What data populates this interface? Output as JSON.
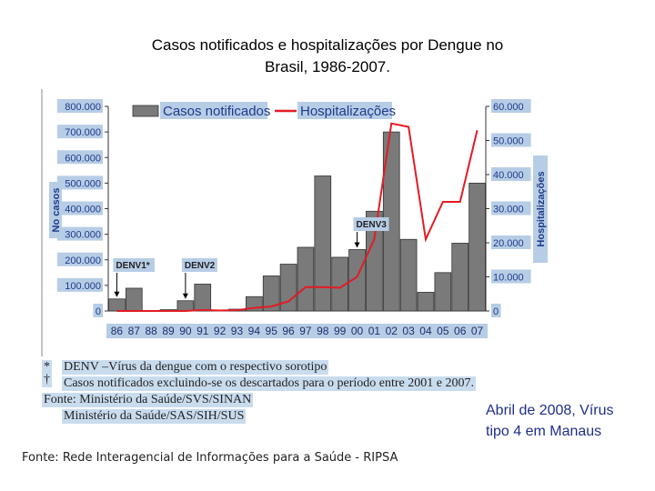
{
  "slide": {
    "title_line1": "Casos notificados e hospitalizações por Dengue no",
    "title_line2": "Brasil, 1986-2007.",
    "note_line1": "Abril de 2008, Vírus",
    "note_line2": "tipo 4  em Manaus",
    "source": "Fonte: Rede Interagencial de Informações para a Saúde - RIPSA"
  },
  "chart_notes": {
    "mark1": "*",
    "mark2": "†",
    "line1": "DENV –Vírus da dengue com o respectivo sorotipo",
    "line2": "Casos notificados excluindo-se os descartados para o período entre 2001 e 2007.",
    "line3": "Fonte: Ministério da Saúde/SVS/SINAN",
    "line4": "Ministério da Saúde/SAS/SIH/SUS"
  },
  "colors": {
    "bar": "#7a7a7a",
    "line": "#e31b23",
    "label_bg": "#b7cde6",
    "label_text": "#1f3a8a",
    "note_bg": "#c9dcee"
  },
  "chart_data": {
    "type": "bar",
    "categories": [
      "86",
      "87",
      "88",
      "89",
      "90",
      "91",
      "92",
      "93",
      "94",
      "95",
      "96",
      "97",
      "98",
      "99",
      "00",
      "01",
      "02",
      "03",
      "04",
      "05",
      "06",
      "07"
    ],
    "series": [
      {
        "name": "Casos notificados",
        "type": "bar",
        "axis": "left",
        "values": [
          47000,
          89000,
          1500,
          5000,
          40000,
          105000,
          1500,
          7000,
          56000,
          137000,
          183000,
          249000,
          528000,
          210000,
          240000,
          390000,
          700000,
          280000,
          73000,
          150000,
          265000,
          500000
        ]
      },
      {
        "name": "Hospitalizações",
        "type": "line",
        "axis": "right",
        "values": [
          0,
          0,
          0,
          0,
          0,
          300,
          150,
          250,
          900,
          1300,
          2800,
          7000,
          7000,
          6800,
          10000,
          21000,
          55000,
          54000,
          21000,
          32000,
          32000,
          53000
        ]
      }
    ],
    "ylabel": "No casos",
    "y2label": "Hospitalizações",
    "ylim": [
      0,
      800000
    ],
    "y2lim": [
      0,
      60000
    ],
    "yticks": [
      "0",
      "100.000",
      "200.000",
      "300.000",
      "400.000",
      "500.000",
      "600.000",
      "700.000",
      "800.000"
    ],
    "y2ticks": [
      "0",
      "10.000",
      "20.000",
      "30.000",
      "40.000",
      "50.000",
      "60.000"
    ],
    "legend": [
      "Casos notificados",
      "Hospitalizações"
    ],
    "legend_position": "top",
    "annotations": [
      {
        "text": "DENV1*",
        "category": "86"
      },
      {
        "text": "DENV2",
        "category": "90"
      },
      {
        "text": "DENV3",
        "category": "00"
      }
    ],
    "grid": false
  }
}
